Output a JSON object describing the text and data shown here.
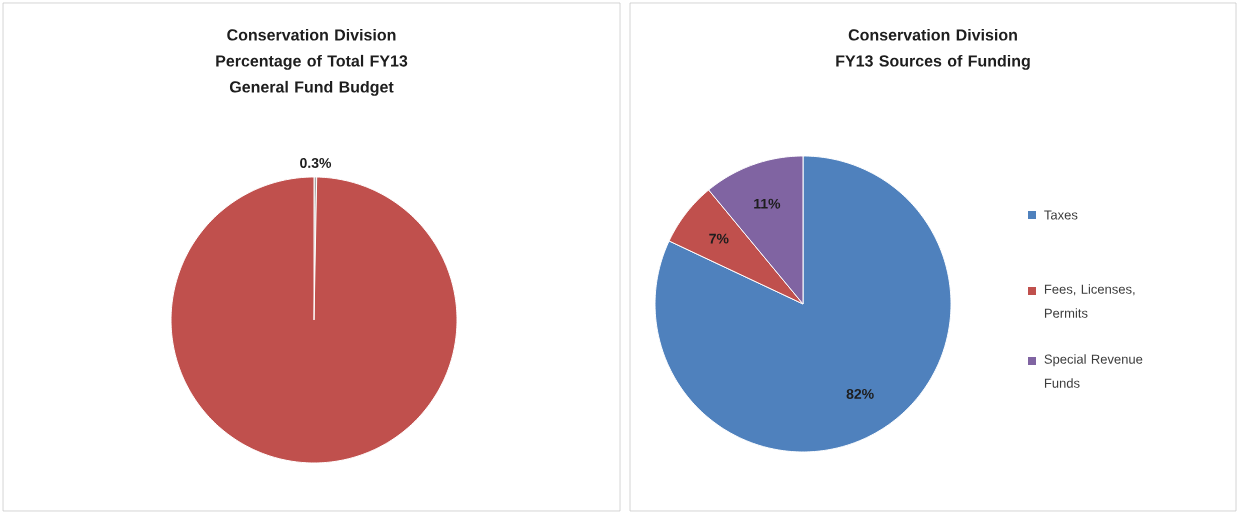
{
  "chart_data": [
    {
      "type": "pie",
      "title": "Conservation Division",
      "subtitle": "Percentage of Total FY13 General Fund Budget",
      "categories": [
        null,
        null
      ],
      "values": [
        0.3,
        99.7
      ],
      "colors": [
        "#a5a5a5",
        "#c0504d"
      ],
      "value_labels": [
        "0.3%",
        null
      ],
      "legend": false
    },
    {
      "type": "pie",
      "title": "Conservation Division",
      "subtitle": "FY13 Sources of Funding",
      "categories": [
        "Taxes",
        "Fees, Licenses, Permits",
        "Special Revenue Funds"
      ],
      "values": [
        82,
        7,
        11
      ],
      "colors": [
        "#4f81bd",
        "#c0504d",
        "#8064a2"
      ],
      "value_labels": [
        "82%",
        "7%",
        "11%"
      ],
      "legend": "right"
    }
  ]
}
